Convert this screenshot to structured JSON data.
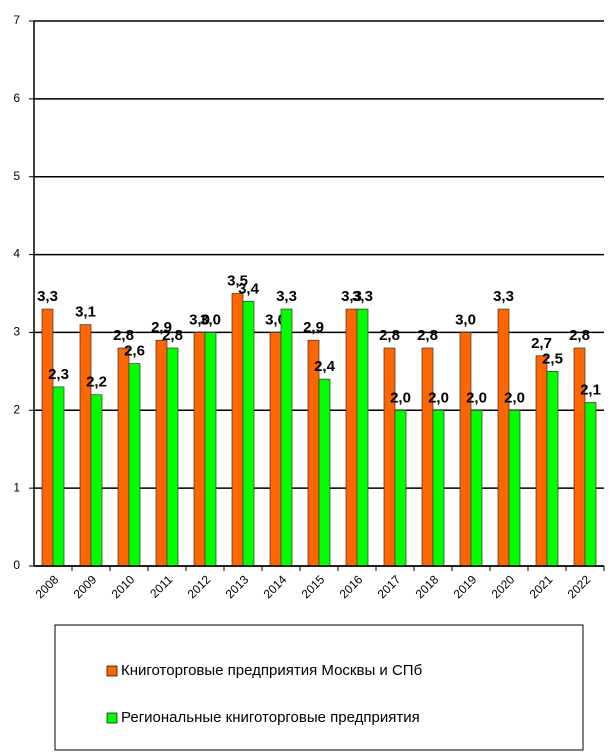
{
  "chart_data": {
    "type": "bar",
    "categories": [
      "2008",
      "2009",
      "2010",
      "2011",
      "2012",
      "2013",
      "2014",
      "2015",
      "2016",
      "2017",
      "2018",
      "2019",
      "2020",
      "2021",
      "2022"
    ],
    "series": [
      {
        "name": "Книготорговые предприятия Москвы и СПб",
        "color": "#ff6600",
        "values": [
          3.3,
          3.1,
          2.8,
          2.9,
          3.0,
          3.5,
          3.0,
          2.9,
          3.3,
          2.8,
          2.8,
          3.0,
          3.3,
          2.7,
          2.8
        ],
        "value_labels": [
          "3,3",
          "3,1",
          "2,8",
          "2,9",
          "3,0",
          "3,5",
          "3,0",
          "2,9",
          "3,3",
          "2,8",
          "2,8",
          "3,0",
          "3,3",
          "2,7",
          "2,8"
        ]
      },
      {
        "name": "Региональные книготорговые предприятия",
        "color": "#00ff00",
        "values": [
          2.3,
          2.2,
          2.6,
          2.8,
          3.0,
          3.4,
          3.3,
          2.4,
          3.3,
          2.0,
          2.0,
          2.0,
          2.0,
          2.5,
          2.1
        ],
        "value_labels": [
          "2,3",
          "2,2",
          "2,6",
          "2,8",
          "3,0",
          "3,4",
          "3,3",
          "2,4",
          "3,3",
          "2,0",
          "2,0",
          "2,0",
          "2,0",
          "2,5",
          "2,1"
        ]
      }
    ],
    "ylim": [
      0,
      7
    ],
    "yticks": [
      0,
      1,
      2,
      3,
      4,
      5,
      6,
      7
    ],
    "grid": true
  }
}
